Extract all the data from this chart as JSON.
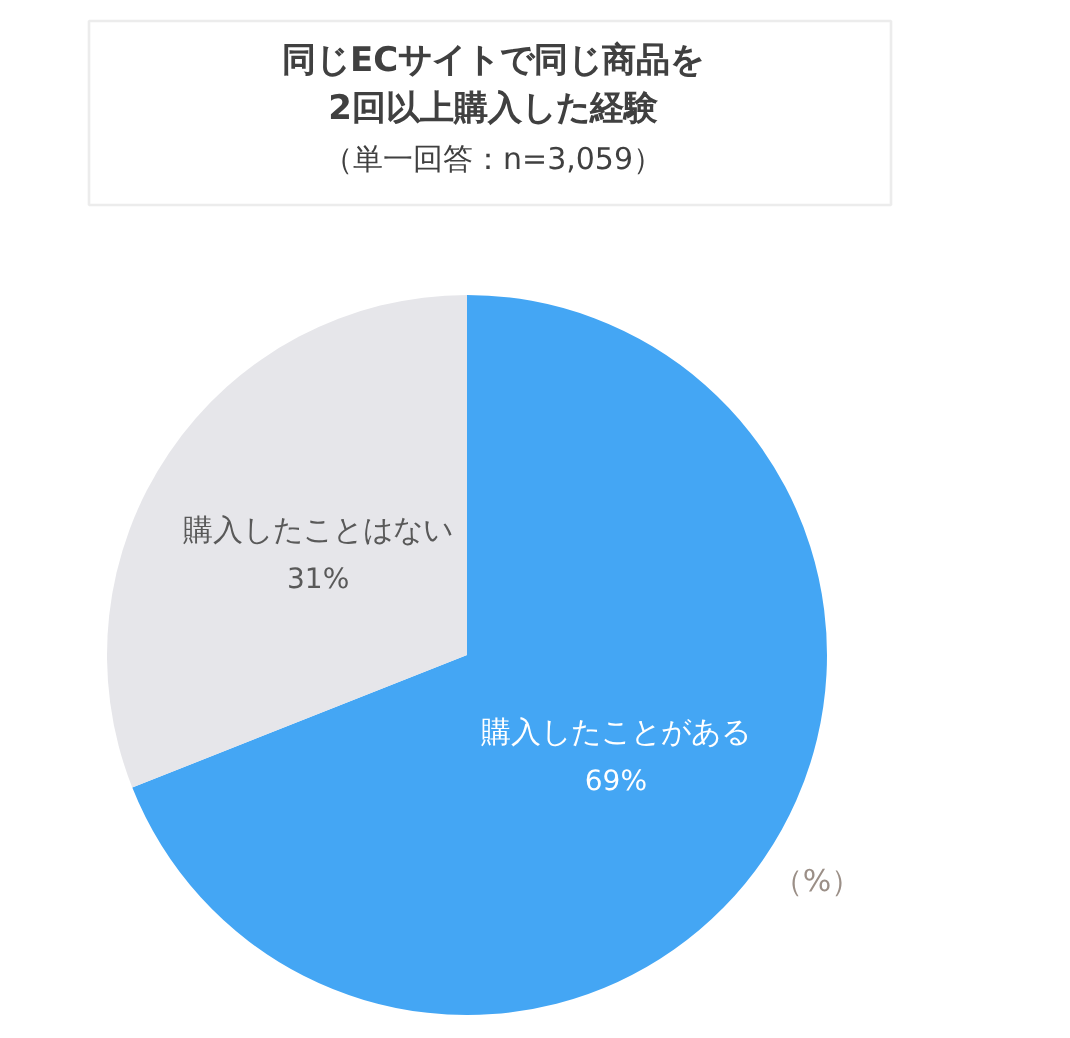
{
  "chart_data": {
    "type": "pie",
    "title": "同じECサイトで同じ商品を\n2回以上購入した経験",
    "subtitle": "（単一回答：n=3,059）",
    "categories": [
      "購入したことがある",
      "購入したことはない"
    ],
    "values": [
      69,
      31
    ],
    "colors": [
      "#44a6f4",
      "#e6e6ea"
    ],
    "value_labels": [
      "69%",
      "31%"
    ],
    "annotations": [
      "（%）"
    ]
  }
}
